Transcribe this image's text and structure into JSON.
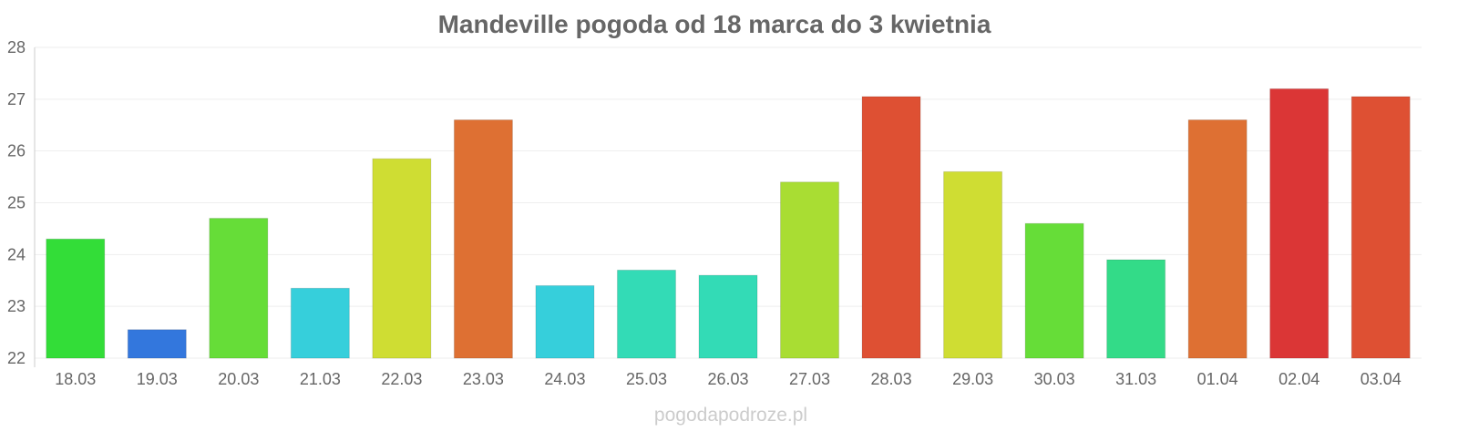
{
  "chart_data": {
    "type": "bar",
    "title": "Mandeville pogoda od 18 marca do 3 kwietnia",
    "xlabel": "",
    "ylabel": "",
    "ylim": [
      22,
      28
    ],
    "yticks": [
      "22",
      "23",
      "24",
      "25",
      "26",
      "27",
      "28"
    ],
    "grid": true,
    "categories": [
      "18.03",
      "19.03",
      "20.03",
      "21.03",
      "22.03",
      "23.03",
      "24.03",
      "25.03",
      "26.03",
      "27.03",
      "28.03",
      "29.03",
      "30.03",
      "31.03",
      "01.04",
      "02.04",
      "03.04"
    ],
    "values": [
      24.3,
      22.55,
      24.7,
      23.35,
      25.85,
      26.6,
      23.4,
      23.7,
      23.6,
      25.4,
      27.05,
      25.6,
      24.6,
      23.9,
      26.6,
      27.2,
      27.05
    ],
    "colors": [
      "#33dd38",
      "#3377dd",
      "#66dd38",
      "#36cfdb",
      "#cfdd33",
      "#de7033",
      "#36cfdb",
      "#33dbb6",
      "#33dbb6",
      "#a9dd33",
      "#de5033",
      "#cfdd33",
      "#66dd38",
      "#33db88",
      "#de7033",
      "#db3636",
      "#de5033"
    ]
  },
  "watermark": "pogodapodroze.pl"
}
